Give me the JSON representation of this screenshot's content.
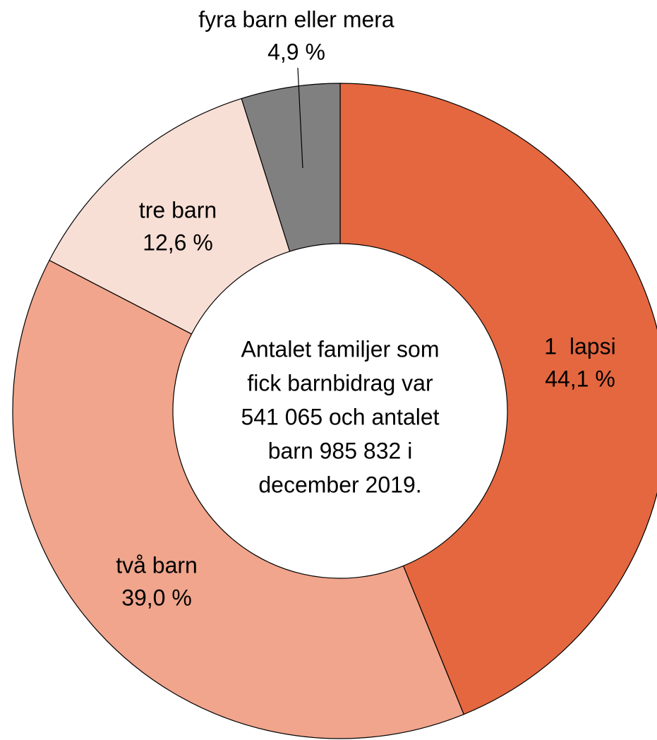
{
  "chart_data": {
    "type": "donut",
    "categories": [
      "1  lapsi",
      "två barn",
      "tre barn",
      "fyra barn eller mera"
    ],
    "values": [
      44.1,
      39.0,
      12.6,
      4.9
    ],
    "value_labels": [
      "44,1 %",
      "39,0 %",
      "12,6 %",
      "4,9 %"
    ],
    "colors": [
      "#e4673f",
      "#f0a58c",
      "#f8dfd5",
      "#808080"
    ],
    "center_text": [
      "Antalet familjer som",
      "fick barnbidrag var",
      "541 065 och antalet",
      "barn 985 832 i",
      "december 2019."
    ]
  }
}
